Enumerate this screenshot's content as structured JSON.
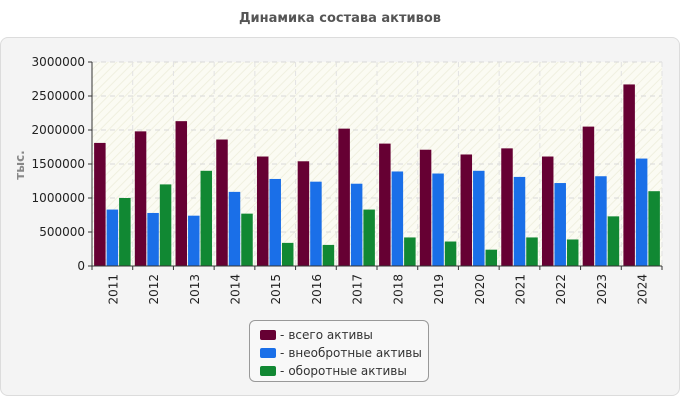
{
  "chart_data": {
    "type": "bar",
    "title": "Динамика состава активов",
    "xlabel": "",
    "ylabel": "тыс.",
    "ylim": [
      0,
      3000000
    ],
    "yticks": [
      "3000000",
      "2500000",
      "2000000",
      "1500000",
      "1000000",
      "500000",
      "0"
    ],
    "categories": [
      "2011",
      "2012",
      "2013",
      "2014",
      "2015",
      "2016",
      "2017",
      "2018",
      "2019",
      "2020",
      "2021",
      "2022",
      "2023",
      "2024"
    ],
    "series": [
      {
        "name": "всего активы",
        "color": "#660033",
        "values": [
          1810000,
          1980000,
          2130000,
          1860000,
          1610000,
          1540000,
          2020000,
          1800000,
          1710000,
          1640000,
          1730000,
          1610000,
          2050000,
          2670000
        ]
      },
      {
        "name": "внеобротные активы",
        "color": "#1a6fe8",
        "values": [
          830000,
          780000,
          740000,
          1090000,
          1280000,
          1240000,
          1210000,
          1390000,
          1360000,
          1400000,
          1310000,
          1220000,
          1320000,
          1580000
        ]
      },
      {
        "name": "оборотные активы",
        "color": "#118833",
        "values": [
          1000000,
          1200000,
          1400000,
          770000,
          340000,
          310000,
          830000,
          420000,
          360000,
          240000,
          420000,
          390000,
          730000,
          1100000
        ]
      }
    ],
    "grid": true,
    "legend_position": "bottom-center"
  },
  "legend": {
    "prefix": "-"
  }
}
